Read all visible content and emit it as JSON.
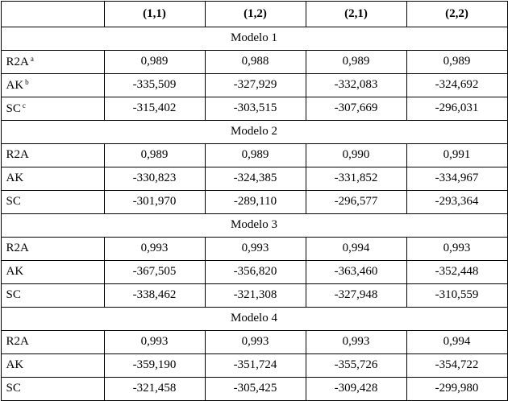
{
  "header": {
    "columns": [
      "(1,1)",
      "(1,2)",
      "(2,1)",
      "(2,2)"
    ]
  },
  "sections": [
    {
      "title": "Modelo 1",
      "rows": [
        {
          "label": "R2A",
          "note": "a",
          "values": [
            "0,989",
            "0,988",
            "0,989",
            "0,989"
          ]
        },
        {
          "label": "AK",
          "note": "b",
          "values": [
            "-335,509",
            "-327,929",
            "-332,083",
            "-324,692"
          ]
        },
        {
          "label": "SC",
          "note": "c",
          "values": [
            "-315,402",
            "-303,515",
            "-307,669",
            "-296,031"
          ]
        }
      ]
    },
    {
      "title": "Modelo 2",
      "rows": [
        {
          "label": "R2A",
          "values": [
            "0,989",
            "0,989",
            "0,990",
            "0,991"
          ]
        },
        {
          "label": "AK",
          "values": [
            "-330,823",
            "-324,385",
            "-331,852",
            "-334,967"
          ]
        },
        {
          "label": "SC",
          "values": [
            "-301,970",
            "-289,110",
            "-296,577",
            "-293,364"
          ]
        }
      ]
    },
    {
      "title": "Modelo 3",
      "rows": [
        {
          "label": "R2A",
          "values": [
            "0,993",
            "0,993",
            "0,994",
            "0,993"
          ]
        },
        {
          "label": "AK",
          "values": [
            "-367,505",
            "-356,820",
            "-363,460",
            "-352,448"
          ]
        },
        {
          "label": "SC",
          "values": [
            "-338,462",
            "-321,308",
            "-327,948",
            "-310,559"
          ]
        }
      ]
    },
    {
      "title": "Modelo 4",
      "rows": [
        {
          "label": "R2A",
          "values": [
            "0,993",
            "0,993",
            "0,993",
            "0,994"
          ]
        },
        {
          "label": "AK",
          "values": [
            "-359,190",
            "-351,724",
            "-355,726",
            "-354,722"
          ]
        },
        {
          "label": "SC",
          "values": [
            "-321,458",
            "-305,425",
            "-309,428",
            "-299,980"
          ]
        }
      ]
    }
  ]
}
